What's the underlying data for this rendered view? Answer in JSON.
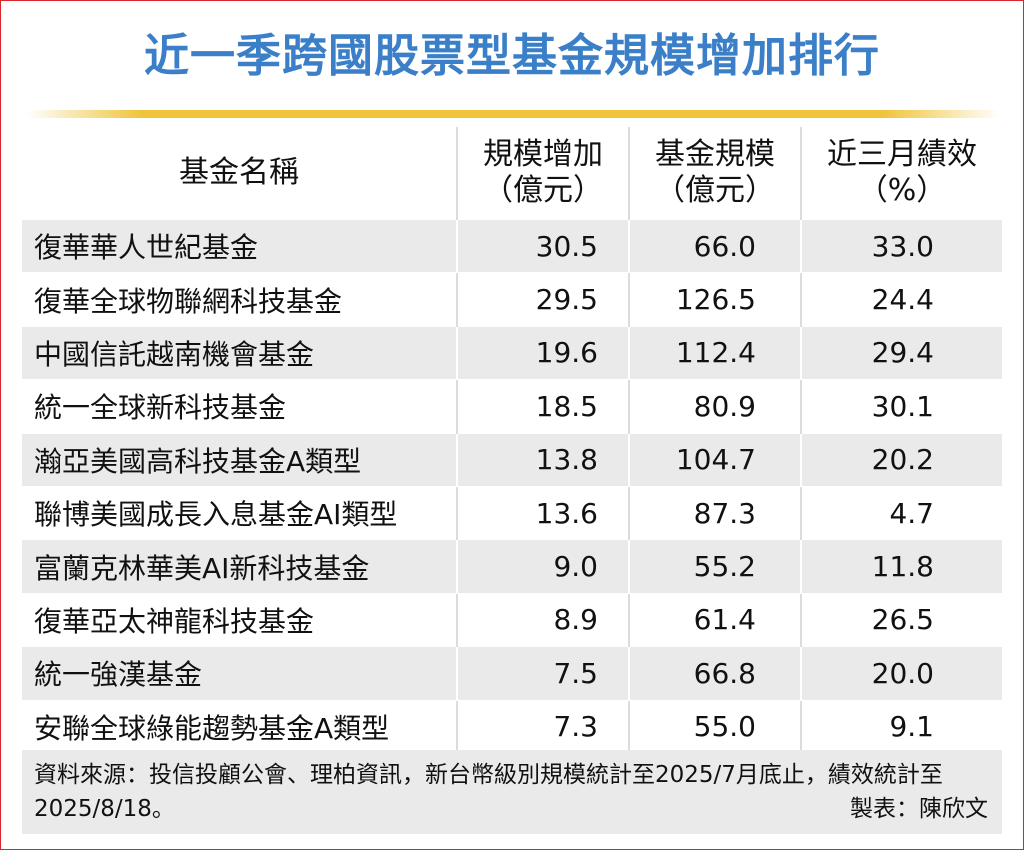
{
  "title": "近一季跨國股票型基金規模增加排行",
  "colors": {
    "title": "#3a7fc7",
    "rule": "#f0c43a",
    "stripe": "#eaeaea",
    "frame": "#d8262b"
  },
  "chart_data": {
    "type": "table",
    "title": "近一季跨國股票型基金規模增加排行",
    "columns": [
      {
        "line1": "基金名稱",
        "line2": ""
      },
      {
        "line1": "規模增加",
        "line2": "（億元）"
      },
      {
        "line1": "基金規模",
        "line2": "（億元）"
      },
      {
        "line1": "近三月績效",
        "line2": "（%）"
      }
    ],
    "rows": [
      {
        "name": "復華華人世紀基金",
        "increase": "30.5",
        "size": "66.0",
        "perf": "33.0"
      },
      {
        "name": "復華全球物聯網科技基金",
        "increase": "29.5",
        "size": "126.5",
        "perf": "24.4"
      },
      {
        "name": "中國信託越南機會基金",
        "increase": "19.6",
        "size": "112.4",
        "perf": "29.4"
      },
      {
        "name": "統一全球新科技基金",
        "increase": "18.5",
        "size": "80.9",
        "perf": "30.1"
      },
      {
        "name": "瀚亞美國高科技基金A類型",
        "increase": "13.8",
        "size": "104.7",
        "perf": "20.2"
      },
      {
        "name": "聯博美國成長入息基金AI類型",
        "increase": "13.6",
        "size": "87.3",
        "perf": "4.7"
      },
      {
        "name": "富蘭克林華美AI新科技基金",
        "increase": "9.0",
        "size": "55.2",
        "perf": "11.8"
      },
      {
        "name": "復華亞太神龍科技基金",
        "increase": "8.9",
        "size": "61.4",
        "perf": "26.5"
      },
      {
        "name": "統一強漢基金",
        "increase": "7.5",
        "size": "66.8",
        "perf": "20.0"
      },
      {
        "name": "安聯全球綠能趨勢基金A類型",
        "increase": "7.3",
        "size": "55.0",
        "perf": "9.1"
      }
    ]
  },
  "footer": {
    "source": "資料來源：投信投顧公會、理柏資訊，新台幣級別規模統計至2025/7月底止，績效統計至2025/8/18。",
    "maker": "製表：陳欣文"
  }
}
